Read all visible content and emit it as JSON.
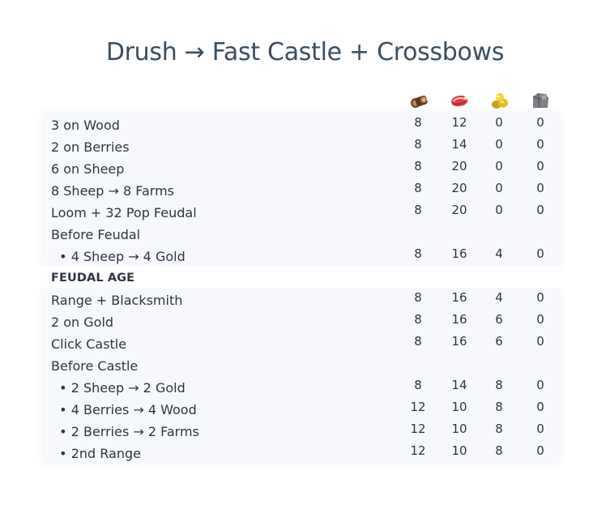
{
  "title": "Drush → Fast Castle + Crossbows",
  "resource_icons": [
    "wood-icon",
    "food-icon",
    "gold-icon",
    "stone-icon"
  ],
  "rows": [
    {
      "label": "3 on Wood",
      "values": [
        "8",
        "12",
        "0",
        "0"
      ]
    },
    {
      "label": "2 on Berries",
      "values": [
        "8",
        "14",
        "0",
        "0"
      ]
    },
    {
      "label": "6 on Sheep",
      "values": [
        "8",
        "20",
        "0",
        "0"
      ]
    },
    {
      "label": "8 Sheep → 8 Farms",
      "values": [
        "8",
        "20",
        "0",
        "0"
      ]
    },
    {
      "label": "Loom + 32 Pop Feudal",
      "values": [
        "8",
        "20",
        "0",
        "0"
      ]
    },
    {
      "label": "Before Feudal",
      "values": [
        "",
        "",
        "",
        ""
      ]
    },
    {
      "label": "  • 4 Sheep → 4 Gold",
      "values": [
        "8",
        "16",
        "4",
        "0"
      ]
    },
    {
      "label": "FEUDAL AGE",
      "values": [
        "",
        "",
        "",
        ""
      ]
    },
    {
      "label": "Range + Blacksmith",
      "values": [
        "8",
        "16",
        "4",
        "0"
      ]
    },
    {
      "label": "2 on Gold",
      "values": [
        "8",
        "16",
        "6",
        "0"
      ]
    },
    {
      "label": "Click Castle",
      "values": [
        "8",
        "16",
        "6",
        "0"
      ]
    },
    {
      "label": "Before Castle",
      "values": [
        "",
        "",
        "",
        ""
      ]
    },
    {
      "label": "  • 2 Sheep → 2 Gold",
      "values": [
        "8",
        "14",
        "8",
        "0"
      ]
    },
    {
      "label": "  • 4 Berries → 4 Wood",
      "values": [
        "12",
        "10",
        "8",
        "0"
      ]
    },
    {
      "label": "  • 2 Berries → 2 Farms",
      "values": [
        "12",
        "10",
        "8",
        "0"
      ]
    },
    {
      "label": "  • 2nd Range",
      "values": [
        "12",
        "10",
        "8",
        "0"
      ]
    }
  ]
}
